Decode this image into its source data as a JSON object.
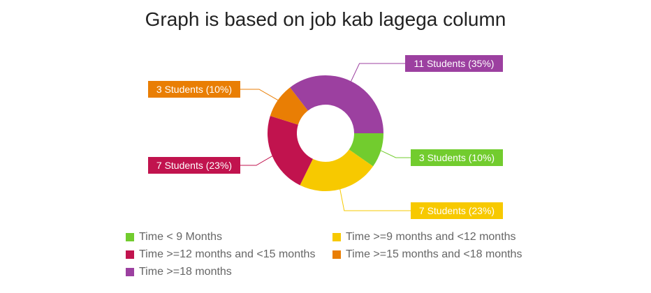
{
  "chart_data": {
    "type": "pie",
    "variant": "donut",
    "title": "Graph is based on job kab lagega column",
    "slices": [
      {
        "name": "Time < 9 Months",
        "value": 3,
        "percent": 10,
        "label": "3 Students (10%)",
        "color": "#72cc2e"
      },
      {
        "name": "Time >=9 months and <12 months",
        "value": 7,
        "percent": 23,
        "label": "7 Students (23%)",
        "color": "#f7c900"
      },
      {
        "name": "Time >=12 months and <15 months",
        "value": 7,
        "percent": 23,
        "label": "7 Students (23%)",
        "color": "#c1134e"
      },
      {
        "name": "Time >=15 months and <18 months",
        "value": 3,
        "percent": 10,
        "label": "3 Students (10%)",
        "color": "#e97e04"
      },
      {
        "name": "Time >=18 months",
        "value": 11,
        "percent": 35,
        "label": "11 Students (35%)",
        "color": "#9c40a0"
      }
    ],
    "start_angle_deg": 90,
    "direction": "clockwise",
    "legend_position": "bottom"
  }
}
